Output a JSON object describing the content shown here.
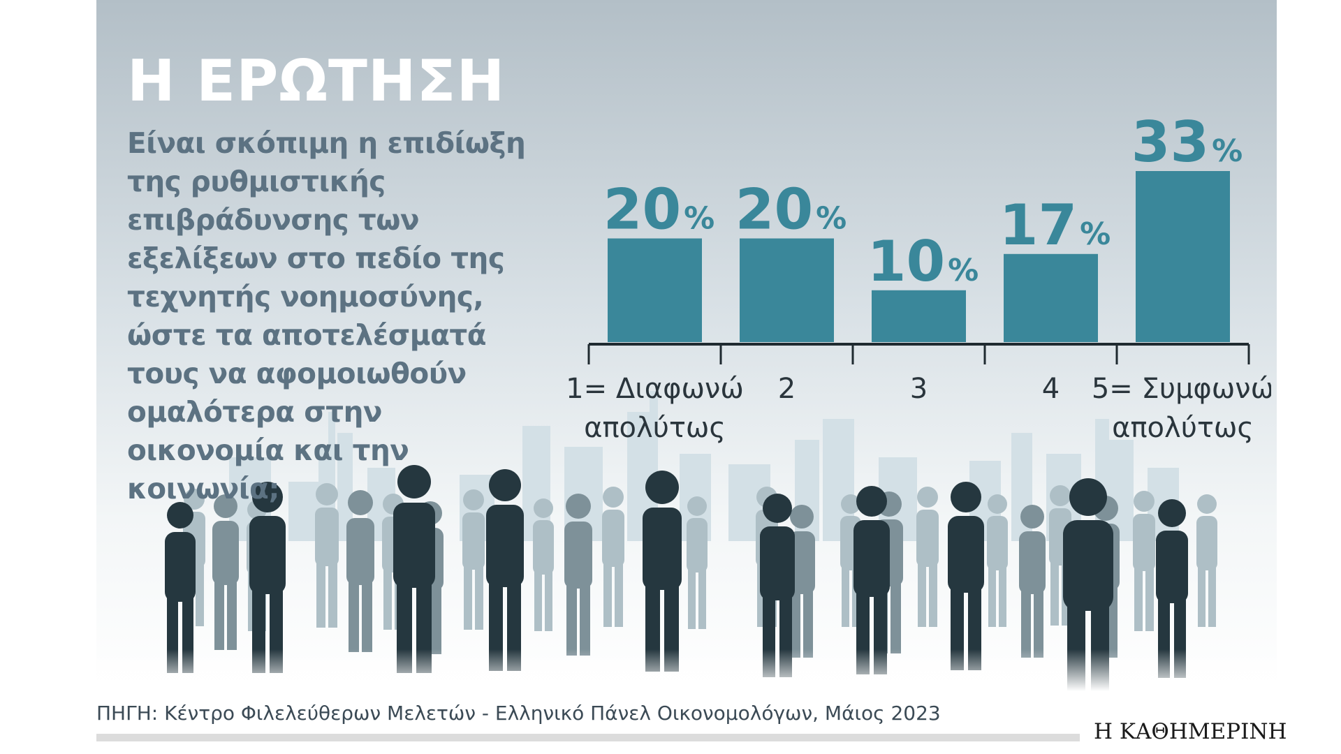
{
  "header": {
    "title": "Η ΕΡΩΤΗΣΗ",
    "question": "Είναι σκόπιμη η επιδίωξη της ρυθμιστικής επιβράδυνσης των εξελίξεων στο πεδίο της τεχνητής νοημοσύνης, ώστε τα αποτελέσματά τους να αφομοιωθούν ομαλότερα στην οικονομία και την κοινωνία;"
  },
  "chart_data": {
    "type": "bar",
    "categories": [
      "1= Διαφωνώ απολύτως",
      "2",
      "3",
      "4",
      "5= Συμφωνώ απολύτως"
    ],
    "category_lines": [
      [
        "1= Διαφωνώ",
        "απολύτως"
      ],
      [
        "2"
      ],
      [
        "3"
      ],
      [
        "4"
      ],
      [
        "5= Συμφωνώ",
        "απολύτως"
      ]
    ],
    "values": [
      20,
      20,
      10,
      17,
      33
    ],
    "value_unit": "%",
    "ylim": [
      0,
      33
    ],
    "grid": false,
    "legend": "none",
    "colors": {
      "bar": "#3a879a",
      "value_label": "#3a879a",
      "axis": "#1f2a30",
      "category_label": "#2a353c"
    }
  },
  "footer": {
    "source": "ΠΗΓΗ: Κέντρο Φιλελεύθερων Μελετών - Ελληνικό Πάνελ Οικονομολόγων, Μάιος 2023",
    "brand": "Η ΚΑΘΗΜΕΡΙΝΗ"
  },
  "colors": {
    "sky_top": "#b3bfc7",
    "sky_bottom": "#ffffff",
    "crowd_dark": "#25373f",
    "crowd_mid": "#7d9099",
    "crowd_light": "#a9bcc3",
    "city": "#cfdde3"
  }
}
